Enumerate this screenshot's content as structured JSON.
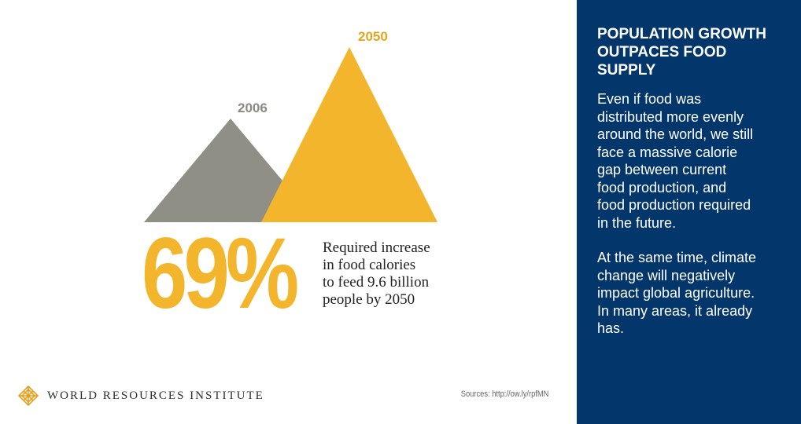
{
  "colors": {
    "gold": "#f3b52b",
    "gray": "#8f8f86",
    "panel": "#03366b"
  },
  "chart_data": {
    "type": "area",
    "series": [
      {
        "name": "2006",
        "color": "#8f8f86"
      },
      {
        "name": "2050",
        "color": "#f3b52b"
      }
    ],
    "x": [
      "2006",
      "2050"
    ],
    "values": [
      100,
      169
    ],
    "annotation": "69%"
  },
  "infographic": {
    "big_percent": "69%",
    "caption": "Required increase\nin food calories\nto feed 9.6 billion\npeople by 2050",
    "label_2006": "2006",
    "label_2050": "2050",
    "logo_icon": "wri-logo-icon",
    "logo_text": "WORLD RESOURCES INSTITUTE",
    "sources": "Sources: http://ow.ly/rpfMN"
  },
  "panel": {
    "title": "POPULATION GROWTH\nOUTPACES FOOD\nSUPPLY",
    "paragraph1": "Even if food was\ndistributed more evenly\naround the world, we still\nface a massive calorie\ngap between current\nfood production, and\nfood production required\nin the future.",
    "paragraph2": "At the same time, climate\nchange will negatively\nimpact global agriculture.\nIn many areas, it already\nhas."
  }
}
